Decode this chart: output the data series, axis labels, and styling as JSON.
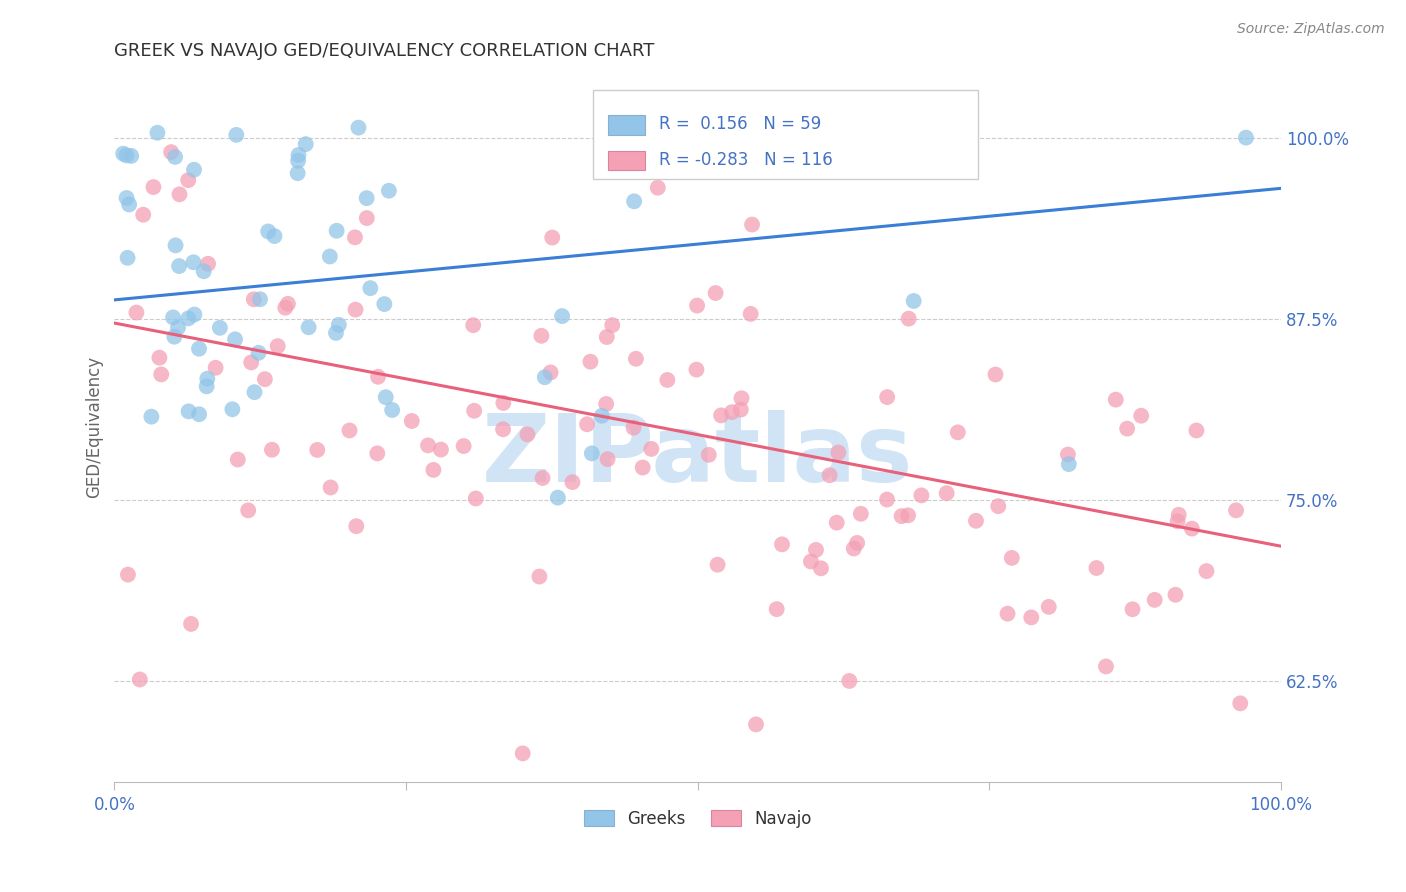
{
  "title": "GREEK VS NAVAJO GED/EQUIVALENCY CORRELATION CHART",
  "source": "Source: ZipAtlas.com",
  "ylabel": "GED/Equivalency",
  "ytick_labels": [
    "100.0%",
    "87.5%",
    "75.0%",
    "62.5%"
  ],
  "ytick_positions": [
    1.0,
    0.875,
    0.75,
    0.625
  ],
  "xlim": [
    0.0,
    1.0
  ],
  "ylim": [
    0.555,
    1.045
  ],
  "greek_R": 0.156,
  "greek_N": 59,
  "navajo_R": -0.283,
  "navajo_N": 116,
  "greek_color": "#92c5e8",
  "navajo_color": "#f4a0b5",
  "greek_line_color": "#3a7fd5",
  "navajo_line_color": "#e8607a",
  "label_color": "#4472c4",
  "bg_color": "#ffffff",
  "watermark_text": "ZIPatlas",
  "watermark_color": "#d0e4f5",
  "greek_line_start_y": 0.888,
  "greek_line_end_y": 0.965,
  "navajo_line_start_y": 0.872,
  "navajo_line_end_y": 0.718
}
